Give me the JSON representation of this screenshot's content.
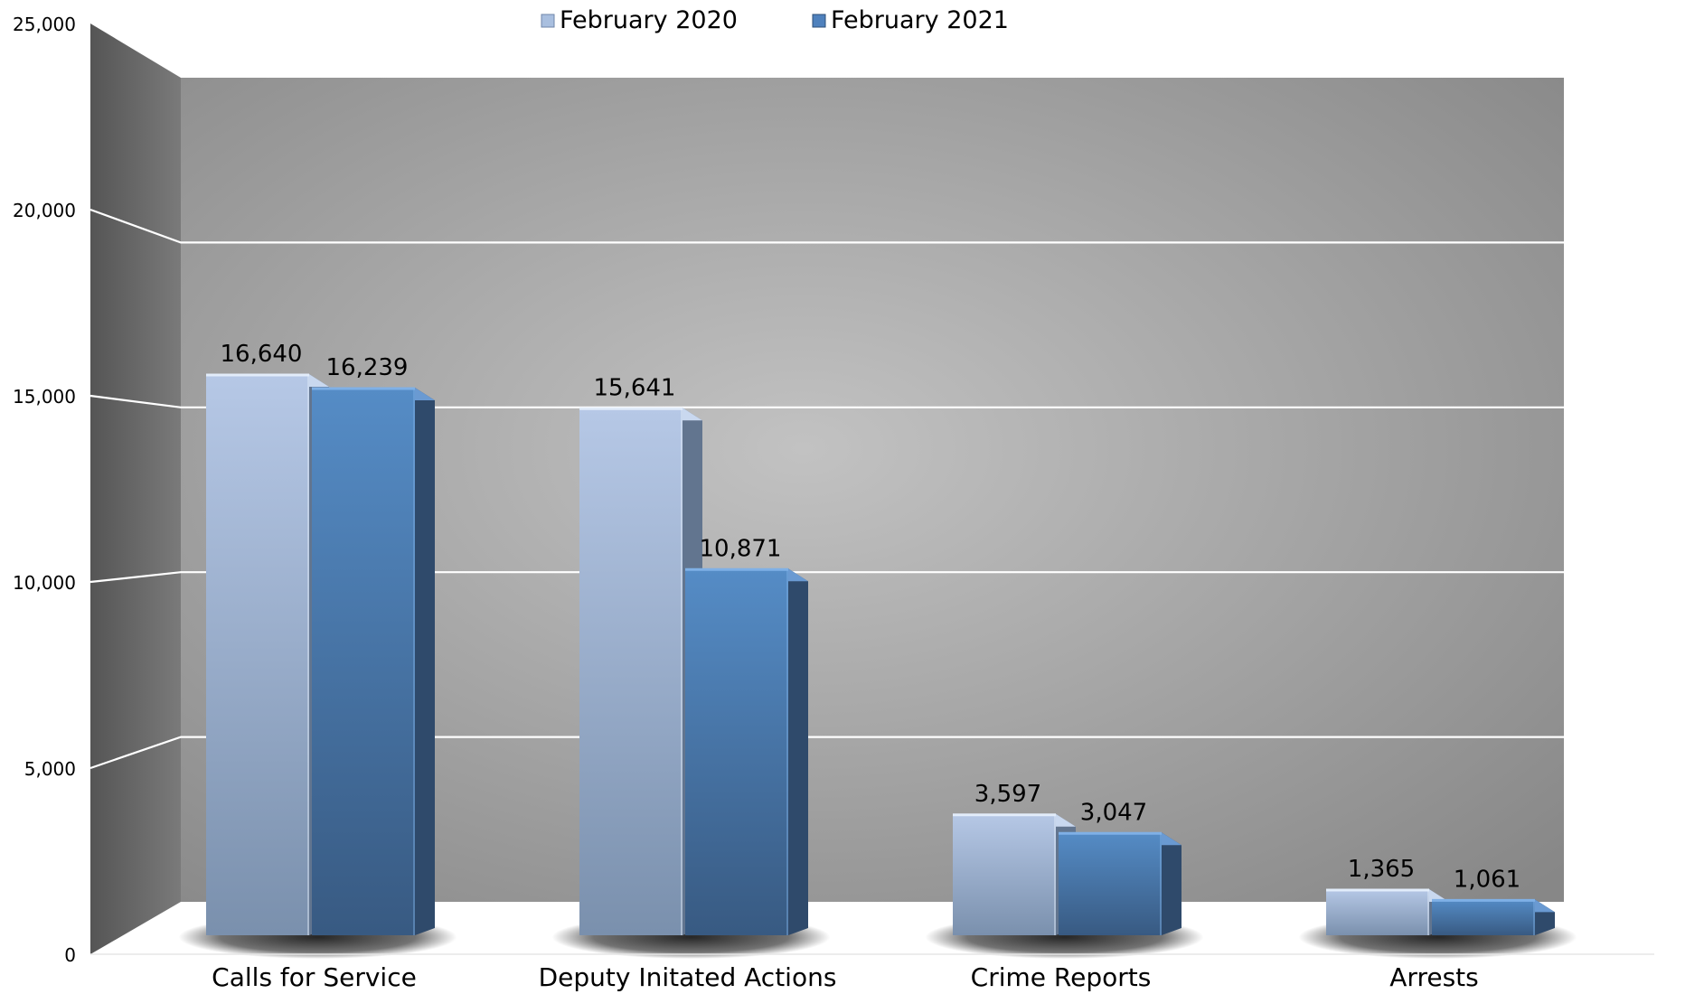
{
  "chart_data": {
    "type": "bar",
    "title": "",
    "xlabel": "",
    "ylabel": "",
    "categories": [
      "Calls for Service",
      "Deputy Initated Actions",
      "Crime Reports",
      "Arrests"
    ],
    "series": [
      {
        "name": "February 2020",
        "values": [
          16640,
          15641,
          3597,
          1365
        ],
        "color": "#a9bfdf"
      },
      {
        "name": "February 2021",
        "values": [
          16239,
          10871,
          3047,
          1061
        ],
        "color": "#4f81bd"
      }
    ],
    "value_labels": {
      "February 2020": [
        "16,640",
        "15,641",
        "3,597",
        "1,365"
      ],
      "February 2021": [
        "16,239",
        "10,871",
        "3,047",
        "1,061"
      ]
    },
    "ylim": [
      0,
      25000
    ],
    "yticks": [
      0,
      5000,
      10000,
      15000,
      20000,
      25000
    ],
    "ytick_labels": [
      "0",
      "5,000",
      "10,000",
      "15,000",
      "20,000",
      "25,000"
    ],
    "grid": true,
    "legend": "top-center",
    "three_d": true
  },
  "legend_labels": [
    "February 2020",
    "February 2021"
  ]
}
